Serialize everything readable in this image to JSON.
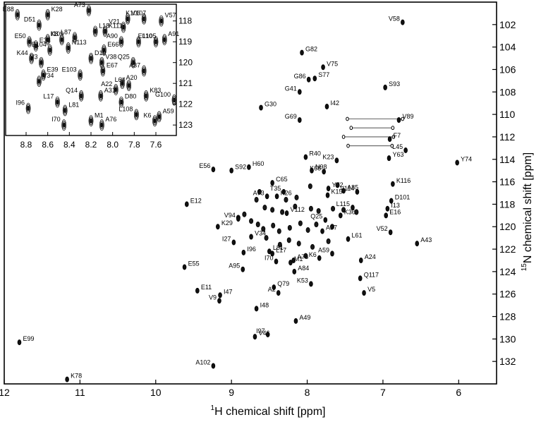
{
  "chart_data": [
    {
      "type": "scatter",
      "name": "main-hsqc",
      "xlabel_sup": "1",
      "xlabel": "H chemical shift [ppm]",
      "ylabel_sup": "15",
      "ylabel": "N chemical shift [ppm]",
      "xlim": [
        12,
        5.5
      ],
      "ylim": [
        134,
        100
      ],
      "xticks": [
        12,
        11,
        10,
        9,
        8,
        7,
        6
      ],
      "yticks": [
        102,
        104,
        106,
        108,
        110,
        112,
        114,
        116,
        118,
        120,
        122,
        124,
        126,
        128,
        130,
        132
      ],
      "peaks": [
        {
          "label": "V58",
          "x": 6.74,
          "y": 101.8
        },
        {
          "label": "G82",
          "x": 8.07,
          "y": 104.5
        },
        {
          "label": "V75",
          "x": 7.79,
          "y": 105.8
        },
        {
          "label": "G86",
          "x": 7.98,
          "y": 106.9
        },
        {
          "label": "S77",
          "x": 7.9,
          "y": 106.8
        },
        {
          "label": "S93",
          "x": 6.97,
          "y": 107.6
        },
        {
          "label": "G41",
          "x": 8.1,
          "y": 108.0
        },
        {
          "label": "I42",
          "x": 7.74,
          "y": 109.3
        },
        {
          "label": "G30",
          "x": 8.61,
          "y": 109.4
        },
        {
          "label": "G69",
          "x": 8.1,
          "y": 110.5
        },
        {
          "label": "V89",
          "x": 6.79,
          "y": 110.5
        },
        {
          "label": "F7",
          "x": 6.91,
          "y": 112.2
        },
        {
          "label": "L45",
          "x": 6.7,
          "y": 113.2
        },
        {
          "label": "R40",
          "x": 8.02,
          "y": 113.8
        },
        {
          "label": "Y63",
          "x": 6.92,
          "y": 113.9
        },
        {
          "label": "K23",
          "x": 7.61,
          "y": 114.1
        },
        {
          "label": "Y74",
          "x": 6.02,
          "y": 114.3
        },
        {
          "label": "H60",
          "x": 8.77,
          "y": 114.7
        },
        {
          "label": "E56",
          "x": 9.24,
          "y": 114.9
        },
        {
          "label": "S92",
          "x": 9.0,
          "y": 115.0
        },
        {
          "label": "N98",
          "x": 7.94,
          "y": 115.0
        },
        {
          "label": "K68",
          "x": 7.78,
          "y": 115.1
        },
        {
          "label": "C65",
          "x": 8.46,
          "y": 116.1
        },
        {
          "label": "K116",
          "x": 6.87,
          "y": 116.2
        },
        {
          "label": "T35",
          "x": 8.31,
          "y": 116.9
        },
        {
          "label": "Y72",
          "x": 7.72,
          "y": 116.6
        },
        {
          "label": "A85",
          "x": 7.52,
          "y": 116.8
        },
        {
          "label": "A73",
          "x": 8.53,
          "y": 117.3
        },
        {
          "label": "K26",
          "x": 8.4,
          "y": 117.3
        },
        {
          "label": "K15",
          "x": 7.73,
          "y": 117.2
        },
        {
          "label": "V114",
          "x": 7.34,
          "y": 116.9
        },
        {
          "label": "D101",
          "x": 6.89,
          "y": 117.7
        },
        {
          "label": "E12",
          "x": 9.59,
          "y": 118.0
        },
        {
          "label": "L115",
          "x": 7.4,
          "y": 118.3
        },
        {
          "label": "I13",
          "x": 6.94,
          "y": 118.4
        },
        {
          "label": "V112",
          "x": 8.27,
          "y": 118.8
        },
        {
          "label": "V94",
          "x": 8.91,
          "y": 119.3
        },
        {
          "label": "E16",
          "x": 6.96,
          "y": 119.0
        },
        {
          "label": "K36",
          "x": 7.56,
          "y": 119.0
        },
        {
          "label": "Q25",
          "x": 7.76,
          "y": 119.4
        },
        {
          "label": "K29",
          "x": 9.18,
          "y": 120.0
        },
        {
          "label": "A37",
          "x": 7.8,
          "y": 120.4
        },
        {
          "label": "V52",
          "x": 6.9,
          "y": 120.5
        },
        {
          "label": "V34",
          "x": 8.74,
          "y": 120.9
        },
        {
          "label": "L61",
          "x": 7.46,
          "y": 121.1
        },
        {
          "label": "I27",
          "x": 8.97,
          "y": 121.4
        },
        {
          "label": "A43",
          "x": 6.55,
          "y": 121.5
        },
        {
          "label": "I96",
          "x": 8.84,
          "y": 122.3
        },
        {
          "label": "A59",
          "x": 7.67,
          "y": 122.4
        },
        {
          "label": "L81",
          "x": 8.5,
          "y": 122.2
        },
        {
          "label": "L17",
          "x": 8.46,
          "y": 122.4
        },
        {
          "label": "K6",
          "x": 7.84,
          "y": 122.8
        },
        {
          "label": "A24",
          "x": 7.29,
          "y": 123.0
        },
        {
          "label": "A76",
          "x": 8.18,
          "y": 123.0
        },
        {
          "label": "I70",
          "x": 8.41,
          "y": 123.1
        },
        {
          "label": "M1",
          "x": 8.22,
          "y": 123.2
        },
        {
          "label": "E55",
          "x": 9.62,
          "y": 123.6
        },
        {
          "label": "A95",
          "x": 8.85,
          "y": 123.8
        },
        {
          "label": "A84",
          "x": 8.17,
          "y": 124.0
        },
        {
          "label": "Q117",
          "x": 7.3,
          "y": 124.6
        },
        {
          "label": "K53",
          "x": 7.95,
          "y": 125.1
        },
        {
          "label": "Q79",
          "x": 8.44,
          "y": 125.4
        },
        {
          "label": "E11",
          "x": 9.45,
          "y": 125.7
        },
        {
          "label": "A2",
          "x": 8.38,
          "y": 125.9
        },
        {
          "label": "V5",
          "x": 7.25,
          "y": 125.9
        },
        {
          "label": "I47",
          "x": 9.15,
          "y": 126.1
        },
        {
          "label": "V9",
          "x": 9.16,
          "y": 126.6
        },
        {
          "label": "I48",
          "x": 8.67,
          "y": 127.3
        },
        {
          "label": "A49",
          "x": 8.15,
          "y": 128.4
        },
        {
          "label": "I97",
          "x": 8.52,
          "y": 129.6
        },
        {
          "label": "V46",
          "x": 8.69,
          "y": 129.8
        },
        {
          "label": "E99",
          "x": 11.8,
          "y": 130.3
        },
        {
          "label": "A102",
          "x": 9.24,
          "y": 132.4
        },
        {
          "label": "K78",
          "x": 11.17,
          "y": 133.6
        }
      ],
      "unlabeled_peaks": [
        {
          "x": 8.91,
          "y": 119.2
        },
        {
          "x": 8.74,
          "y": 119.5
        },
        {
          "x": 8.65,
          "y": 119.8
        },
        {
          "x": 8.83,
          "y": 118.9
        },
        {
          "x": 8.56,
          "y": 118.3
        },
        {
          "x": 8.46,
          "y": 118.5
        },
        {
          "x": 8.33,
          "y": 118.7
        },
        {
          "x": 8.16,
          "y": 118.2
        },
        {
          "x": 7.95,
          "y": 118.4
        },
        {
          "x": 7.85,
          "y": 118.6
        },
        {
          "x": 7.66,
          "y": 118.4
        },
        {
          "x": 7.52,
          "y": 118.5
        },
        {
          "x": 7.35,
          "y": 118.7
        },
        {
          "x": 8.58,
          "y": 120.2
        },
        {
          "x": 8.45,
          "y": 119.9
        },
        {
          "x": 8.37,
          "y": 120.4
        },
        {
          "x": 8.23,
          "y": 120.1
        },
        {
          "x": 8.09,
          "y": 119.7
        },
        {
          "x": 7.99,
          "y": 120.3
        },
        {
          "x": 7.88,
          "y": 119.8
        },
        {
          "x": 7.67,
          "y": 120.0
        },
        {
          "x": 8.24,
          "y": 121.2
        },
        {
          "x": 8.11,
          "y": 121.5
        },
        {
          "x": 7.93,
          "y": 121.8
        },
        {
          "x": 7.72,
          "y": 121.3
        },
        {
          "x": 8.54,
          "y": 121.0
        },
        {
          "x": 8.36,
          "y": 121.6
        },
        {
          "x": 8.02,
          "y": 122.6
        },
        {
          "x": 8.67,
          "y": 117.6
        },
        {
          "x": 8.28,
          "y": 117.6
        },
        {
          "x": 8.14,
          "y": 117.4
        },
        {
          "x": 7.96,
          "y": 116.4
        },
        {
          "x": 8.63,
          "y": 116.9
        },
        {
          "x": 7.6,
          "y": 116.3
        }
      ],
      "nh2_pairs": [
        {
          "y": 110.4,
          "x_left": 7.47,
          "x_right": 6.74
        },
        {
          "y": 111.2,
          "x_left": 7.42,
          "x_right": 6.87
        },
        {
          "y": 112.0,
          "x_left": 7.52,
          "x_right": 6.86
        },
        {
          "y": 112.8,
          "x_left": 7.46,
          "x_right": 6.88
        }
      ]
    },
    {
      "type": "scatter",
      "name": "inset-zoom",
      "xlim": [
        8.95,
        7.45
      ],
      "ylim": [
        123.3,
        117.4
      ],
      "xticks_values": [
        8.8,
        8.6,
        8.4,
        8.2,
        8.0,
        7.8,
        7.6
      ],
      "xticks": [
        "8.8",
        "8.6",
        "8.4",
        "8.2",
        "8.0",
        "7.8",
        "7.6"
      ],
      "yticks": [
        118,
        119,
        120,
        121,
        122,
        123
      ],
      "peaks": [
        {
          "label": "E88",
          "x": 8.88,
          "y": 117.7
        },
        {
          "label": "K28",
          "x": 8.6,
          "y": 117.7
        },
        {
          "label": "A73",
          "x": 8.22,
          "y": 117.5
        },
        {
          "label": "V107",
          "x": 7.86,
          "y": 117.9
        },
        {
          "label": "K106",
          "x": 7.71,
          "y": 117.9
        },
        {
          "label": "V57",
          "x": 7.55,
          "y": 118.0
        },
        {
          "label": "D51",
          "x": 8.68,
          "y": 118.2
        },
        {
          "label": "K111",
          "x": 8.07,
          "y": 118.5
        },
        {
          "label": "V21",
          "x": 7.9,
          "y": 118.3
        },
        {
          "label": "L18",
          "x": 8.16,
          "y": 118.5
        },
        {
          "label": "L87",
          "x": 8.35,
          "y": 118.8
        },
        {
          "label": "I109",
          "x": 8.6,
          "y": 118.9
        },
        {
          "label": "K8",
          "x": 8.47,
          "y": 118.9
        },
        {
          "label": "A91",
          "x": 7.52,
          "y": 118.9
        },
        {
          "label": "E50",
          "x": 8.77,
          "y": 119.0
        },
        {
          "label": "E33",
          "x": 8.71,
          "y": 119.2
        },
        {
          "label": "A90",
          "x": 7.92,
          "y": 119.0
        },
        {
          "label": "L105",
          "x": 7.76,
          "y": 119.0
        },
        {
          "label": "E110",
          "x": 7.6,
          "y": 119.0
        },
        {
          "label": "N113",
          "x": 8.41,
          "y": 119.3
        },
        {
          "label": "E104",
          "x": 8.58,
          "y": 119.4
        },
        {
          "label": "E66",
          "x": 8.08,
          "y": 119.4
        },
        {
          "label": "K44",
          "x": 8.75,
          "y": 119.8
        },
        {
          "label": "D19",
          "x": 8.2,
          "y": 119.8
        },
        {
          "label": "V3",
          "x": 8.66,
          "y": 120.0
        },
        {
          "label": "V38",
          "x": 8.1,
          "y": 120.0
        },
        {
          "label": "Q25",
          "x": 7.81,
          "y": 120.0
        },
        {
          "label": "E67",
          "x": 8.09,
          "y": 120.4
        },
        {
          "label": "A37",
          "x": 7.71,
          "y": 120.4
        },
        {
          "label": "E39",
          "x": 8.64,
          "y": 120.6
        },
        {
          "label": "E103",
          "x": 8.3,
          "y": 120.6
        },
        {
          "label": "V34",
          "x": 8.68,
          "y": 120.9
        },
        {
          "label": "L64",
          "x": 7.85,
          "y": 121.1
        },
        {
          "label": "A20",
          "x": 7.91,
          "y": 121.0
        },
        {
          "label": "A22",
          "x": 7.97,
          "y": 121.3
        },
        {
          "label": "K83",
          "x": 7.69,
          "y": 121.6
        },
        {
          "label": "Q14",
          "x": 8.29,
          "y": 121.6
        },
        {
          "label": "A31",
          "x": 8.11,
          "y": 121.6
        },
        {
          "label": "L17",
          "x": 8.51,
          "y": 121.9
        },
        {
          "label": "D80",
          "x": 7.92,
          "y": 121.9
        },
        {
          "label": "I96",
          "x": 8.78,
          "y": 122.2
        },
        {
          "label": "L81",
          "x": 8.44,
          "y": 122.3
        },
        {
          "label": "L108",
          "x": 7.78,
          "y": 122.5
        },
        {
          "label": "A59",
          "x": 7.57,
          "y": 122.6
        },
        {
          "label": "K6",
          "x": 7.61,
          "y": 122.8
        },
        {
          "label": "M1",
          "x": 8.2,
          "y": 122.8
        },
        {
          "label": "I70",
          "x": 8.45,
          "y": 123.0
        },
        {
          "label": "A76",
          "x": 8.1,
          "y": 123.0
        },
        {
          "label": "G100",
          "x": 7.42,
          "y": 121.8
        }
      ]
    }
  ]
}
